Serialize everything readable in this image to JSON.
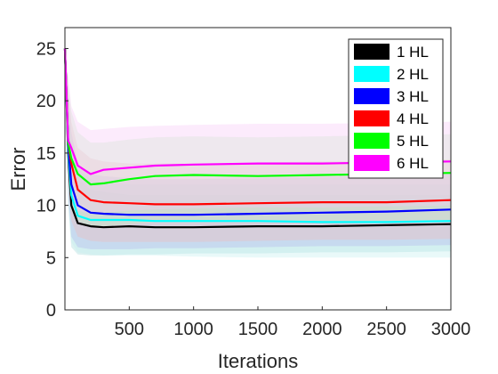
{
  "chart_data": {
    "type": "line",
    "title": "",
    "xlabel": "Iterations",
    "ylabel": "Error",
    "xlim": [
      0,
      3000
    ],
    "ylim": [
      0,
      27
    ],
    "xticks": [
      500,
      1000,
      1500,
      2000,
      2500,
      3000
    ],
    "yticks": [
      0,
      5,
      10,
      15,
      20,
      25
    ],
    "grid": false,
    "legend_position": "top-right",
    "shaded_bands": true,
    "series": [
      {
        "name": "1 HL",
        "color": "#000000",
        "band": "#9fd8d8",
        "x": [
          0,
          25,
          50,
          100,
          200,
          300,
          500,
          700,
          1000,
          1500,
          2000,
          2500,
          3000
        ],
        "y": [
          25,
          15,
          10,
          8.3,
          8.0,
          7.9,
          8.0,
          7.9,
          7.9,
          8.0,
          8.0,
          8.1,
          8.2
        ],
        "lower": [
          25,
          10,
          6.0,
          5.3,
          5.2,
          5.2,
          5.3,
          5.3,
          5.4,
          5.4,
          5.5,
          5.5,
          5.6
        ],
        "upper": [
          25,
          20,
          15,
          12.5,
          11.5,
          11.3,
          11.0,
          11.0,
          11.0,
          11.0,
          11.0,
          11.0,
          11.0
        ]
      },
      {
        "name": "2 HL",
        "color": "#00ffff",
        "band": "#bfefef",
        "x": [
          0,
          25,
          50,
          100,
          200,
          300,
          500,
          700,
          1000,
          1500,
          2000,
          2500,
          3000
        ],
        "y": [
          25,
          15.5,
          11,
          9.0,
          8.6,
          8.6,
          8.6,
          8.5,
          8.5,
          8.5,
          8.4,
          8.4,
          8.5
        ],
        "lower": [
          25,
          11,
          6.5,
          5.5,
          5.3,
          5.2,
          5.2,
          5.2,
          5.1,
          5.0,
          5.0,
          5.0,
          5.0
        ],
        "upper": [
          25,
          20,
          16,
          13.5,
          12.5,
          12.2,
          12.0,
          12.0,
          12.0,
          12.0,
          12.0,
          12.0,
          12.0
        ]
      },
      {
        "name": "3 HL",
        "color": "#0000ff",
        "band": "#b3b3ee",
        "x": [
          0,
          25,
          50,
          100,
          200,
          300,
          500,
          700,
          1000,
          1500,
          2000,
          2500,
          3000
        ],
        "y": [
          25,
          16,
          12,
          10.0,
          9.3,
          9.2,
          9.1,
          9.1,
          9.1,
          9.2,
          9.3,
          9.4,
          9.6
        ],
        "lower": [
          25,
          11,
          7.0,
          6.0,
          5.8,
          5.8,
          5.8,
          5.9,
          5.9,
          6.0,
          6.1,
          6.1,
          6.2
        ],
        "upper": [
          25,
          21,
          17,
          14.0,
          13.0,
          12.8,
          12.6,
          12.5,
          12.5,
          12.6,
          12.7,
          12.8,
          13.0
        ]
      },
      {
        "name": "4 HL",
        "color": "#ff0000",
        "band": "#f3b6b6",
        "x": [
          0,
          25,
          50,
          100,
          200,
          300,
          500,
          700,
          1000,
          1500,
          2000,
          2500,
          3000
        ],
        "y": [
          25,
          16,
          14,
          11.5,
          10.5,
          10.3,
          10.2,
          10.1,
          10.1,
          10.2,
          10.3,
          10.3,
          10.5
        ],
        "lower": [
          25,
          12,
          8.5,
          7.0,
          6.6,
          6.5,
          6.5,
          6.5,
          6.5,
          6.6,
          6.7,
          6.7,
          6.8
        ],
        "upper": [
          25,
          21,
          18,
          15.5,
          14.5,
          14.2,
          14.0,
          14.0,
          14.0,
          14.1,
          14.2,
          14.3,
          14.4
        ]
      },
      {
        "name": "5 HL",
        "color": "#00ff00",
        "band": "#c2f2c2",
        "x": [
          0,
          25,
          50,
          100,
          200,
          300,
          500,
          700,
          1000,
          1500,
          2000,
          2500,
          3000
        ],
        "y": [
          25,
          16,
          14.5,
          13.0,
          12.0,
          12.1,
          12.5,
          12.8,
          12.9,
          12.8,
          12.9,
          13.0,
          13.1
        ],
        "lower": [
          25,
          12,
          9.5,
          8.5,
          8.0,
          8.0,
          8.2,
          8.4,
          8.4,
          8.4,
          8.5,
          8.5,
          8.6
        ],
        "upper": [
          25,
          22,
          19,
          17.0,
          16.0,
          16.0,
          16.3,
          16.5,
          16.6,
          16.5,
          16.6,
          16.7,
          16.8
        ]
      },
      {
        "name": "6 HL",
        "color": "#ff00ff",
        "band": "#f7c6f7",
        "x": [
          0,
          25,
          50,
          100,
          200,
          300,
          500,
          700,
          1000,
          1500,
          2000,
          2500,
          3000
        ],
        "y": [
          25,
          16.2,
          15.5,
          13.8,
          13.0,
          13.4,
          13.6,
          13.8,
          13.9,
          14.0,
          14.0,
          14.1,
          14.2
        ],
        "lower": [
          25,
          12.5,
          10.5,
          9.5,
          9.2,
          9.3,
          9.5,
          9.6,
          9.7,
          9.8,
          9.8,
          9.9,
          10.0
        ],
        "upper": [
          25,
          22.5,
          19.5,
          18.0,
          17.2,
          17.3,
          17.5,
          17.6,
          17.7,
          17.8,
          17.8,
          17.9,
          18.0
        ]
      }
    ]
  }
}
